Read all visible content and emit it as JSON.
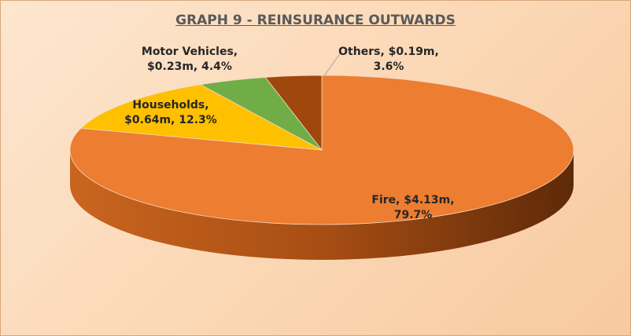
{
  "chart_data": {
    "type": "pie3d",
    "title": "GRAPH 9 - REINSURANCE OUTWARDS",
    "categories": [
      "Fire",
      "Households",
      "Motor Vehicles",
      "Others"
    ],
    "values": [
      79.7,
      12.3,
      4.4,
      3.6
    ],
    "value_labels": [
      "79.7%",
      "12.3%",
      "4.4%",
      "3.6%"
    ],
    "amounts": [
      4.13,
      0.64,
      0.23,
      0.19
    ],
    "amount_labels": [
      "$4.13m",
      "$0.64m",
      "$0.23m",
      "$0.19m"
    ],
    "colors": [
      "#ed7d31",
      "#ffc000",
      "#70ad47",
      "#9e480e"
    ]
  }
}
